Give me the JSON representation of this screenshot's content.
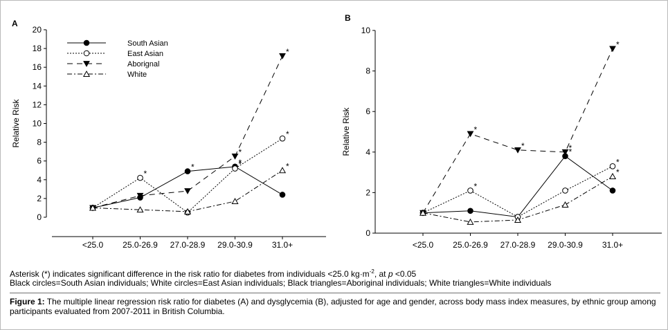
{
  "chart_data": [
    {
      "type": "line",
      "panel_label": "A",
      "ylabel": "Relative Risk",
      "xlabel": "",
      "categories": [
        "<25.0",
        "25.0-26.9",
        "27.0-28.9",
        "29.0-30.9",
        "31.0+"
      ],
      "ylim": [
        0,
        20
      ],
      "yticks": [
        "0",
        "2",
        "4",
        "6",
        "8",
        "10",
        "12",
        "14",
        "16",
        "18",
        "20"
      ],
      "legend_position": "top-left",
      "series": [
        {
          "name": "South Asian",
          "values": [
            1.0,
            2.1,
            4.9,
            5.4,
            2.4
          ],
          "significant": [
            false,
            false,
            true,
            true,
            false
          ],
          "marker": "filled-circle",
          "dash": "solid"
        },
        {
          "name": "East Asian",
          "values": [
            1.0,
            4.2,
            0.5,
            5.2,
            8.4
          ],
          "significant": [
            false,
            true,
            false,
            true,
            true
          ],
          "marker": "open-circle",
          "dash": "dotted"
        },
        {
          "name": "Aborignal",
          "values": [
            1.0,
            2.3,
            2.8,
            6.5,
            17.2
          ],
          "significant": [
            false,
            false,
            false,
            true,
            true
          ],
          "marker": "filled-triangle-down",
          "dash": "dashed"
        },
        {
          "name": "White",
          "values": [
            1.0,
            0.8,
            0.6,
            1.7,
            5.0
          ],
          "significant": [
            false,
            false,
            false,
            false,
            true
          ],
          "marker": "open-triangle-up",
          "dash": "dash-dot"
        }
      ]
    },
    {
      "type": "line",
      "panel_label": "B",
      "ylabel": "Relative Risk",
      "xlabel": "",
      "categories": [
        "<25.0",
        "25.0-26.9",
        "27.0-28.9",
        "29.0-30.9",
        "31.0+"
      ],
      "ylim": [
        0,
        10
      ],
      "yticks": [
        "0",
        "2",
        "4",
        "6",
        "8",
        "10"
      ],
      "legend_position": "none",
      "series": [
        {
          "name": "South Asian",
          "values": [
            1.0,
            1.1,
            0.8,
            3.8,
            2.1
          ],
          "significant": [
            false,
            false,
            false,
            true,
            false
          ],
          "marker": "filled-circle",
          "dash": "solid"
        },
        {
          "name": "East Asian",
          "values": [
            1.0,
            2.1,
            0.8,
            2.1,
            3.3
          ],
          "significant": [
            false,
            true,
            false,
            false,
            true
          ],
          "marker": "open-circle",
          "dash": "dotted"
        },
        {
          "name": "Aborignal",
          "values": [
            1.0,
            4.9,
            4.1,
            4.0,
            9.1
          ],
          "significant": [
            false,
            true,
            true,
            true,
            true
          ],
          "marker": "filled-triangle-down",
          "dash": "dashed"
        },
        {
          "name": "White",
          "values": [
            1.0,
            0.55,
            0.65,
            1.4,
            2.8
          ],
          "significant": [
            false,
            false,
            false,
            false,
            true
          ],
          "marker": "open-triangle-up",
          "dash": "dash-dot"
        }
      ]
    }
  ],
  "significance_mark": "*",
  "notes": {
    "asterisk_prefix": "Asterisk (*) indicates significant difference in the risk ratio for diabetes from individuals <25.0 kg·m",
    "asterisk_sup": "-2",
    "asterisk_mid": ", at ",
    "asterisk_p": "p",
    "asterisk_suffix": " <0.05",
    "markers": "Black circles=South Asian individuals; White circles=East Asian individuals; Black triangles=Aboriginal individuals; White triangles=White individuals"
  },
  "caption": {
    "label": "Figure 1:",
    "text": " The multiple linear regression risk ratio for diabetes (A) and dysglycemia (B), adjusted for age and gender, across body mass index measures, by ethnic group among participants evaluated from 2007-2011 in British Columbia."
  }
}
